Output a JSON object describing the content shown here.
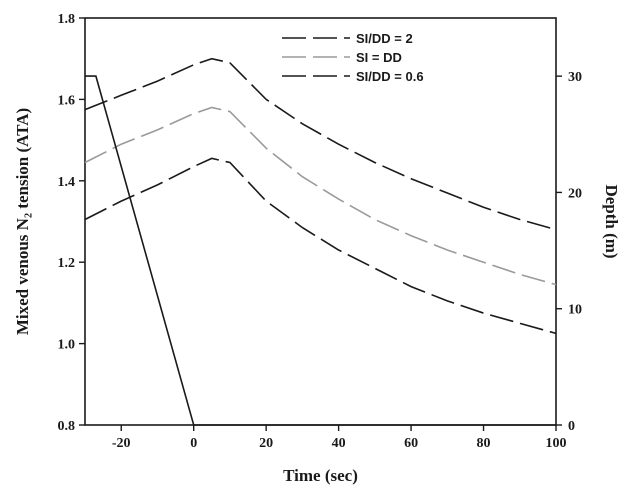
{
  "chart_data": {
    "type": "line",
    "xlabel": "Time (sec)",
    "ylabel_left": "Mixed venous N₂ tension (ATA)",
    "ylabel_right": "Depth (m)",
    "xlim": [
      -30,
      100
    ],
    "ylim_left": [
      0.8,
      1.8
    ],
    "ylim_right": [
      0,
      35
    ],
    "x_ticks": [
      "-20",
      "0",
      "20",
      "40",
      "60",
      "80",
      "100"
    ],
    "y_ticks_left": [
      "0.8",
      "1.0",
      "1.2",
      "1.4",
      "1.6",
      "1.8"
    ],
    "y_ticks_right": [
      "0",
      "10",
      "20",
      "30"
    ],
    "grid": false,
    "legend_position": "top-center",
    "series": [
      {
        "name": "SI/DD = 2",
        "axis": "left",
        "style": "long-dash",
        "color": "#1a1a1a",
        "x": [
          -30,
          -20,
          -10,
          0,
          5,
          10,
          20,
          30,
          40,
          50,
          60,
          70,
          80,
          90,
          100
        ],
        "y": [
          1.575,
          1.61,
          1.645,
          1.685,
          1.7,
          1.69,
          1.6,
          1.54,
          1.49,
          1.445,
          1.405,
          1.37,
          1.335,
          1.305,
          1.28
        ]
      },
      {
        "name": "SI = DD",
        "axis": "left",
        "style": "long-dash",
        "color": "#9a9a9a",
        "x": [
          -30,
          -20,
          -10,
          0,
          5,
          10,
          20,
          30,
          40,
          50,
          60,
          70,
          80,
          90,
          100
        ],
        "y": [
          1.445,
          1.49,
          1.525,
          1.565,
          1.58,
          1.57,
          1.48,
          1.41,
          1.355,
          1.305,
          1.265,
          1.23,
          1.2,
          1.17,
          1.145
        ]
      },
      {
        "name": "SI/DD = 0.6",
        "axis": "left",
        "style": "long-dash",
        "color": "#1a1a1a",
        "x": [
          -30,
          -20,
          -10,
          0,
          5,
          10,
          20,
          30,
          40,
          50,
          60,
          70,
          80,
          90,
          100
        ],
        "y": [
          1.305,
          1.35,
          1.39,
          1.435,
          1.455,
          1.445,
          1.35,
          1.285,
          1.23,
          1.185,
          1.14,
          1.105,
          1.075,
          1.05,
          1.025
        ]
      },
      {
        "name": "",
        "axis": "right",
        "style": "solid",
        "color": "#1a1a1a",
        "x": [
          -30,
          -27,
          0,
          100
        ],
        "y": [
          30,
          30,
          0,
          0
        ]
      }
    ]
  }
}
